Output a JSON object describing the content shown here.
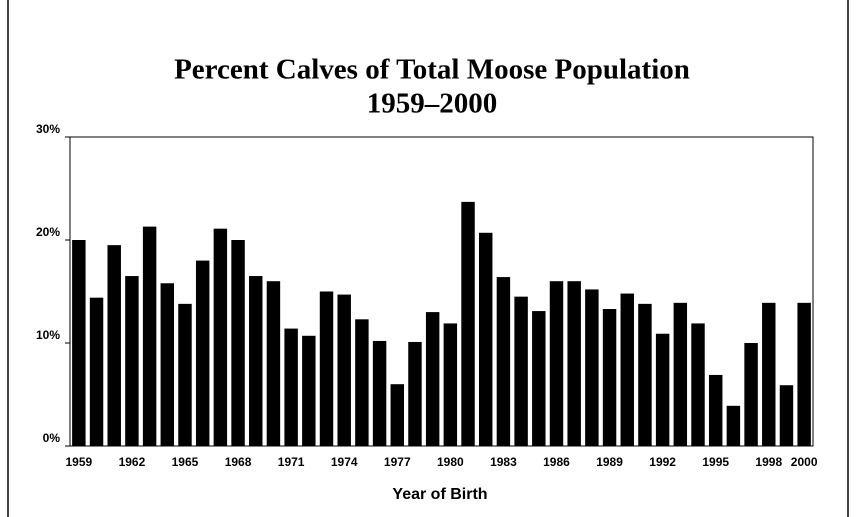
{
  "chart_data": {
    "type": "bar",
    "title": "Percent Calves of Total Moose Population",
    "subtitle": "1959–2000",
    "x_label": "Year of Birth",
    "categories": [
      "1959",
      null,
      null,
      "1962",
      null,
      null,
      "1965",
      null,
      null,
      "1968",
      null,
      null,
      "1971",
      null,
      null,
      "1974",
      null,
      null,
      "1977",
      null,
      null,
      "1980",
      null,
      null,
      "1983",
      null,
      null,
      "1986",
      null,
      null,
      "1989",
      null,
      null,
      "1992",
      null,
      null,
      "1995",
      null,
      null,
      "1998",
      null,
      "2000"
    ],
    "values": [
      20.0,
      14.4,
      19.5,
      16.5,
      21.3,
      15.8,
      13.8,
      18.0,
      21.1,
      20.0,
      16.5,
      16.0,
      11.4,
      10.7,
      15.0,
      14.7,
      12.3,
      10.2,
      6.0,
      10.1,
      13.0,
      11.9,
      23.7,
      20.7,
      16.4,
      14.5,
      13.1,
      16.0,
      16.0,
      15.2,
      13.3,
      14.8,
      13.8,
      10.9,
      13.9,
      11.9,
      6.9,
      3.9,
      10.0,
      13.9,
      5.9,
      13.9
    ],
    "color": "#000000",
    "ylim": [
      0,
      30
    ],
    "yticks": [
      {
        "value": 0,
        "label": "0%"
      },
      {
        "value": 10,
        "label": "10%"
      },
      {
        "value": 20,
        "label": "20%"
      },
      {
        "value": 30,
        "label": "30%"
      }
    ],
    "grid": false
  }
}
